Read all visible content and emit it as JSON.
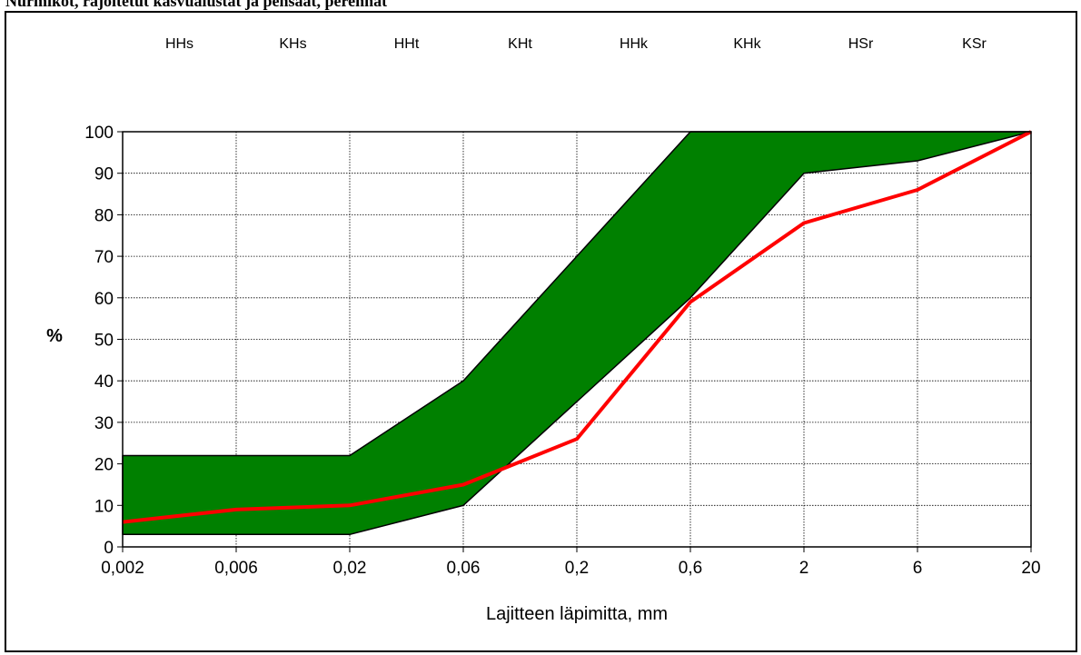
{
  "page": {
    "title": "Nurmikot, rajoitetut kasvualustat ja pensaat, perennat"
  },
  "chart_data": {
    "type": "area",
    "title": "",
    "xlabel": "Lajitteen läpimitta, mm",
    "ylabel": "%",
    "x_ticks": [
      "0,002",
      "0,006",
      "0,02",
      "0,06",
      "0,2",
      "0,6",
      "2",
      "6",
      "20"
    ],
    "y_ticks": [
      "0",
      "10",
      "20",
      "30",
      "40",
      "50",
      "60",
      "70",
      "80",
      "90",
      "100"
    ],
    "ylim": [
      0,
      100
    ],
    "x_scale": "log",
    "grid": true,
    "fraction_labels": [
      "HHs",
      "KHs",
      "HHt",
      "KHt",
      "HHk",
      "KHk",
      "HSr",
      "KSr"
    ],
    "band": {
      "color": "#008000",
      "upper": [
        {
          "x": 0.002,
          "y": 22
        },
        {
          "x": 0.02,
          "y": 22
        },
        {
          "x": 0.06,
          "y": 40
        },
        {
          "x": 0.2,
          "y": 70
        },
        {
          "x": 0.6,
          "y": 100
        },
        {
          "x": 20,
          "y": 100
        }
      ],
      "lower": [
        {
          "x": 0.002,
          "y": 3
        },
        {
          "x": 0.02,
          "y": 3
        },
        {
          "x": 0.06,
          "y": 10
        },
        {
          "x": 0.2,
          "y": 35
        },
        {
          "x": 0.6,
          "y": 60
        },
        {
          "x": 2,
          "y": 90
        },
        {
          "x": 6,
          "y": 93
        },
        {
          "x": 20,
          "y": 100
        }
      ]
    },
    "series": [
      {
        "color": "#ff0000",
        "points": [
          {
            "x": 0.002,
            "y": 6
          },
          {
            "x": 0.006,
            "y": 9
          },
          {
            "x": 0.02,
            "y": 10
          },
          {
            "x": 0.06,
            "y": 15
          },
          {
            "x": 0.2,
            "y": 26
          },
          {
            "x": 0.6,
            "y": 59
          },
          {
            "x": 2,
            "y": 78
          },
          {
            "x": 6,
            "y": 86
          },
          {
            "x": 20,
            "y": 100
          }
        ]
      }
    ]
  }
}
